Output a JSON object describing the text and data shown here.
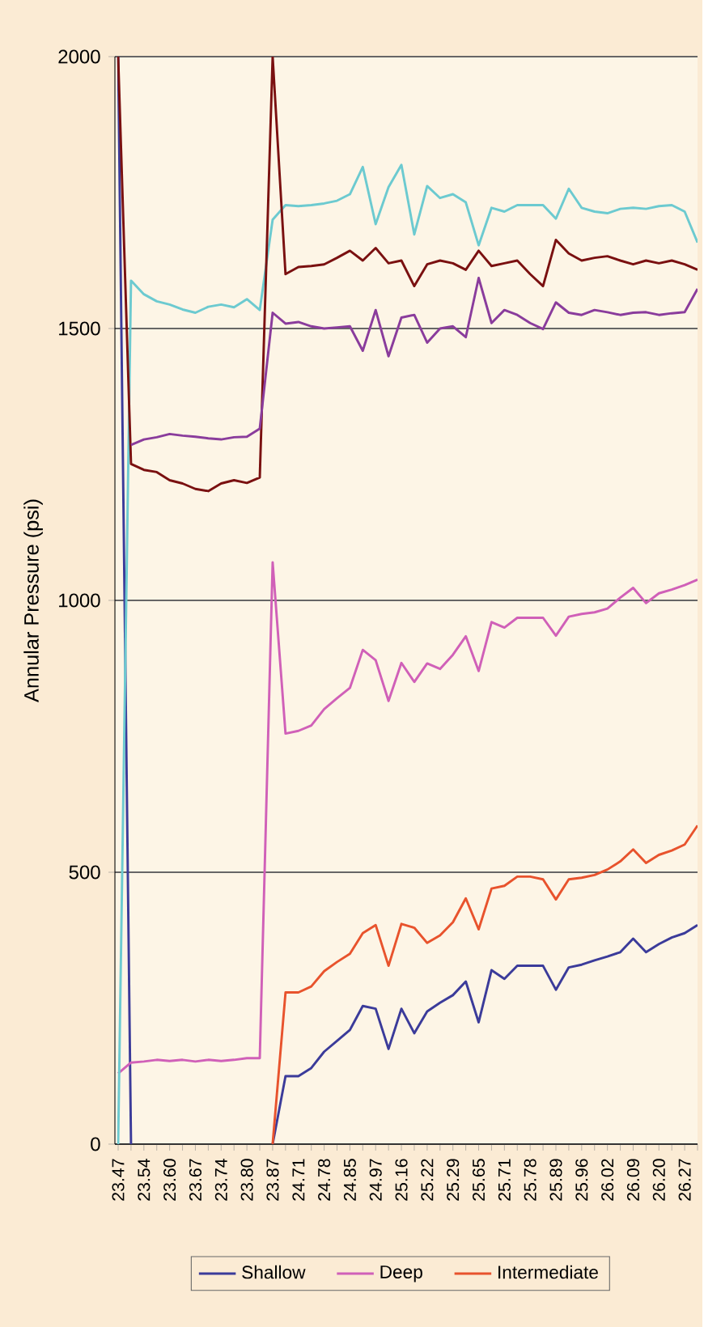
{
  "chart_data": {
    "type": "line",
    "ylabel": "Annular Pressure (psi)",
    "categories": [
      "23.47",
      null,
      "23.54",
      null,
      "23.60",
      null,
      "23.67",
      null,
      "23.74",
      null,
      "23.80",
      null,
      "23.87",
      null,
      "24.71",
      null,
      "24.78",
      null,
      "24.85",
      null,
      "24.97",
      null,
      "25.16",
      null,
      "25.22",
      null,
      "25.29",
      null,
      "25.65",
      null,
      "25.71",
      null,
      "25.78",
      null,
      "25.89",
      null,
      "25.96",
      null,
      "26.02",
      null,
      "26.09",
      null,
      "26.20",
      null,
      "26.27",
      null
    ],
    "series": [
      {
        "name": "Shallow",
        "color": "#3b3b9a",
        "values": [
          2000,
          0,
          null,
          null,
          null,
          null,
          null,
          null,
          null,
          null,
          null,
          null,
          0,
          125,
          125,
          140,
          170,
          190,
          210,
          254,
          249,
          175,
          249,
          204,
          244,
          260,
          274,
          299,
          224,
          320,
          304,
          328,
          328,
          328,
          284,
          325,
          330,
          338,
          345,
          353,
          378,
          353,
          368,
          380,
          388,
          403
        ]
      },
      {
        "name": "Deep",
        "color": "#d060b8",
        "values": [
          130,
          150,
          152,
          155,
          153,
          155,
          152,
          155,
          153,
          155,
          158,
          158,
          1070,
          755,
          760,
          770,
          800,
          820,
          839,
          909,
          890,
          815,
          885,
          850,
          884,
          874,
          900,
          934,
          870,
          960,
          950,
          968,
          968,
          968,
          935,
          970,
          975,
          978,
          985,
          1005,
          1023,
          995,
          1013,
          1020,
          1028,
          1038
        ]
      },
      {
        "name": "Intermediate",
        "color": "#e8532d",
        "values": [
          null,
          null,
          null,
          null,
          null,
          null,
          null,
          null,
          null,
          null,
          null,
          null,
          0,
          279,
          279,
          290,
          318,
          335,
          350,
          388,
          403,
          328,
          405,
          398,
          370,
          384,
          408,
          452,
          395,
          470,
          475,
          492,
          492,
          487,
          450,
          487,
          490,
          495,
          505,
          520,
          542,
          517,
          532,
          540,
          551,
          586
        ]
      },
      {
        "color": "#6ccad0",
        "values": [
          0,
          1588,
          1563,
          1550,
          1544,
          1535,
          1529,
          1540,
          1544,
          1539,
          1554,
          1534,
          1700,
          1727,
          1725,
          1727,
          1730,
          1735,
          1747,
          1797,
          1692,
          1760,
          1801,
          1673,
          1762,
          1740,
          1747,
          1732,
          1653,
          1722,
          1715,
          1727,
          1727,
          1727,
          1702,
          1757,
          1722,
          1715,
          1712,
          1720,
          1722,
          1720,
          1725,
          1727,
          1715,
          1658
        ]
      },
      {
        "color": "#7a1010",
        "values": [
          2000,
          1251,
          1240,
          1236,
          1221,
          1215,
          1205,
          1201,
          1215,
          1221,
          1216,
          1226,
          2000,
          1600,
          1613,
          1615,
          1618,
          1630,
          1643,
          1625,
          1648,
          1620,
          1625,
          1578,
          1618,
          1625,
          1620,
          1608,
          1643,
          1615,
          1620,
          1625,
          1600,
          1578,
          1663,
          1638,
          1625,
          1630,
          1633,
          1625,
          1618,
          1625,
          1620,
          1625,
          1618,
          1608
        ]
      },
      {
        "color": "#8a3c9c",
        "values": [
          null,
          1286,
          1296,
          1300,
          1306,
          1303,
          1301,
          1298,
          1296,
          1300,
          1301,
          1316,
          1529,
          1509,
          1512,
          1504,
          1500,
          1502,
          1504,
          1459,
          1534,
          1449,
          1520,
          1525,
          1474,
          1500,
          1504,
          1484,
          1593,
          1510,
          1534,
          1525,
          1510,
          1499,
          1548,
          1529,
          1525,
          1534,
          1530,
          1525,
          1529,
          1530,
          1525,
          1528,
          1530,
          1573
        ]
      }
    ],
    "ylim": [
      0,
      2000
    ],
    "yticks": [
      0,
      500,
      1000,
      1500,
      2000
    ],
    "grid": "y",
    "legend": "bottom"
  }
}
